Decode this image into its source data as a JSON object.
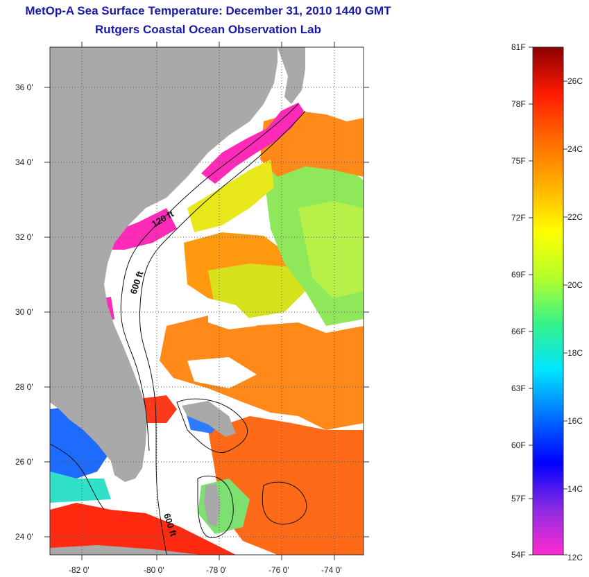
{
  "header": {
    "title": "MetOp-A Sea Surface Temperature:  December 31, 2010 1440 GMT",
    "subtitle": "Rutgers Coastal Ocean Observation Lab"
  },
  "map": {
    "lat_ticks": [
      "36 0'",
      "34 0'",
      "32 0'",
      "30 0'",
      "28 0'",
      "26 0'",
      "24 0'"
    ],
    "lon_ticks": [
      "-82 0'",
      "-80 0'",
      "-78 0'",
      "-76 0'",
      "-74 0'"
    ],
    "contour_labels": [
      "120 ft",
      "600 ft",
      "600 ft"
    ],
    "colors": {
      "land": "#a9a9a9",
      "no_data": "#ffffff",
      "coastline": "#111111"
    }
  },
  "colorbar": {
    "fahrenheit_labels": [
      "81F",
      "78F",
      "75F",
      "72F",
      "69F",
      "66F",
      "63F",
      "60F",
      "57F",
      "54F"
    ],
    "celsius_labels": [
      "26C",
      "24C",
      "22C",
      "20C",
      "18C",
      "16C",
      "14C",
      "12C"
    ],
    "gradient_colors": [
      "#ff2bd0",
      "#8a2be2",
      "#0000ff",
      "#0070ff",
      "#00e5ff",
      "#35f28a",
      "#b4ff2a",
      "#ffff00",
      "#ffb000",
      "#ff6a00",
      "#ff1a00",
      "#8b0000"
    ]
  }
}
